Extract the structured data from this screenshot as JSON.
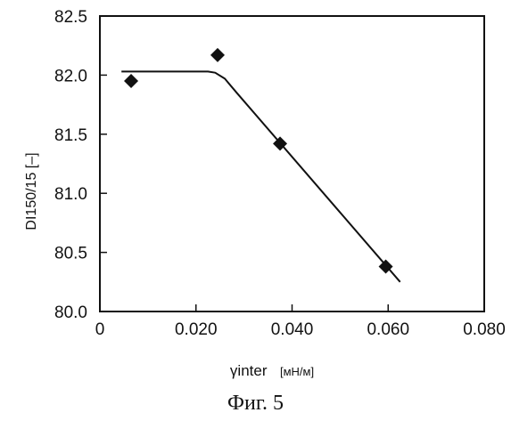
{
  "chart_data": {
    "type": "scatter",
    "xlabel": "γinter",
    "xlabel_unit": "[мН/м]",
    "ylabel": "DI150/15 [–]",
    "xlim": [
      0.0,
      0.08
    ],
    "ylim": [
      80.0,
      82.5
    ],
    "x_ticks": [
      0.0,
      0.02,
      0.04,
      0.06,
      0.08
    ],
    "x_tick_labels": [
      "0",
      "0.020",
      "0.040",
      "0.060",
      "0.080"
    ],
    "y_ticks": [
      80.0,
      80.5,
      81.0,
      81.5,
      82.0,
      82.5
    ],
    "y_tick_labels": [
      "80.0",
      "80.5",
      "81.0",
      "81.5",
      "82.0",
      "82.5"
    ],
    "grid": false,
    "points": {
      "x": [
        0.0065,
        0.0245,
        0.0375,
        0.0595
      ],
      "y": [
        81.95,
        82.17,
        81.42,
        80.38
      ],
      "marker": "diamond"
    },
    "trend_line": {
      "x": [
        0.0045,
        0.0225,
        0.024,
        0.026,
        0.0285,
        0.0625
      ],
      "y": [
        82.03,
        82.03,
        82.02,
        81.97,
        81.85,
        80.25
      ]
    }
  },
  "caption": "Фиг. 5"
}
